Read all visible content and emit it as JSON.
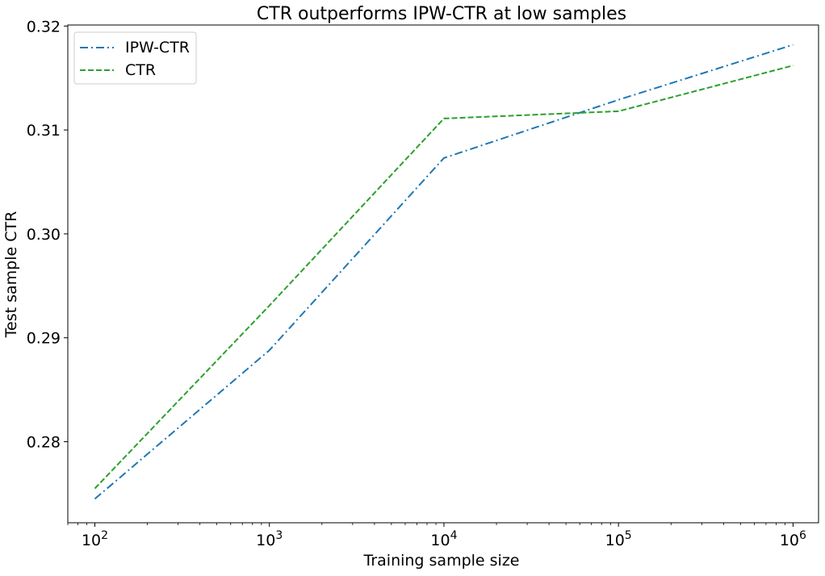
{
  "chart_data": {
    "type": "line",
    "title": "CTR outperforms IPW-CTR at low samples",
    "xlabel": "Training sample size",
    "ylabel": "Test sample CTR",
    "xscale": "log",
    "xlim": [
      70,
      1400000
    ],
    "ylim": [
      0.2722,
      0.3201
    ],
    "x": [
      100,
      1000,
      10000,
      100000,
      1000000
    ],
    "x_ticks": [
      {
        "value": 100,
        "base": "10",
        "exp": "2"
      },
      {
        "value": 1000,
        "base": "10",
        "exp": "3"
      },
      {
        "value": 10000,
        "base": "10",
        "exp": "4"
      },
      {
        "value": 100000,
        "base": "10",
        "exp": "5"
      },
      {
        "value": 1000000,
        "base": "10",
        "exp": "6"
      }
    ],
    "y_ticks": [
      {
        "value": 0.28,
        "label": "0.28"
      },
      {
        "value": 0.29,
        "label": "0.29"
      },
      {
        "value": 0.3,
        "label": "0.30"
      },
      {
        "value": 0.31,
        "label": "0.31"
      },
      {
        "value": 0.32,
        "label": "0.32"
      }
    ],
    "series": [
      {
        "name": "IPW-CTR",
        "values": [
          0.2745,
          0.2888,
          0.3073,
          0.3129,
          0.3182
        ],
        "color": "#1f77b4",
        "style": "dashdot"
      },
      {
        "name": "CTR",
        "values": [
          0.2755,
          0.2931,
          0.3111,
          0.3118,
          0.3162
        ],
        "color": "#2ca02c",
        "style": "dashed"
      }
    ],
    "grid": false,
    "legend_position": "top-left"
  }
}
